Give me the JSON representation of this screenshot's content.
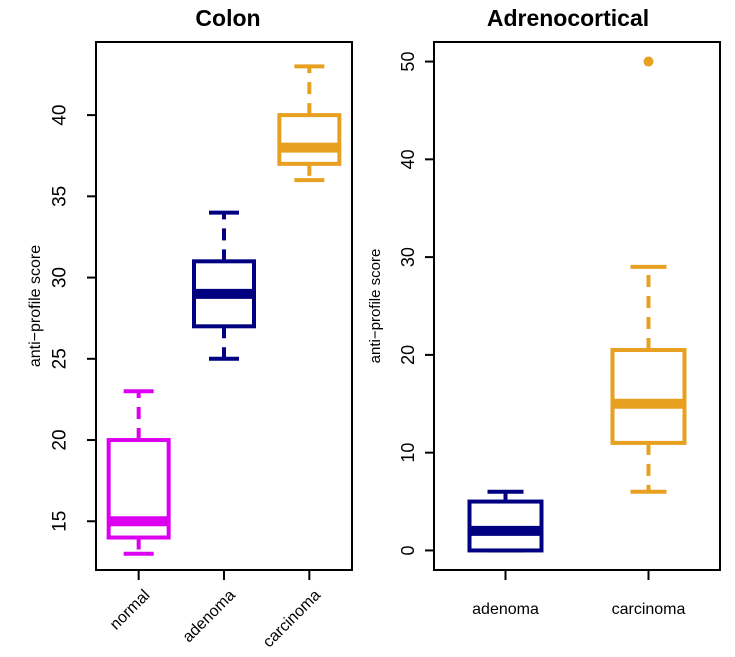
{
  "chart_data": [
    {
      "type": "box",
      "title": "Colon",
      "ylabel": "anti−profile score",
      "ylim": [
        12,
        44.5
      ],
      "yticks": [
        15,
        20,
        25,
        30,
        35,
        40
      ],
      "grid": false,
      "category_label_rotation": -45,
      "categories": [
        "normal",
        "adenoma",
        "carcinoma"
      ],
      "boxes": [
        {
          "category": "normal",
          "color": "#dd00f0",
          "whisker_low": 13,
          "q1": 14,
          "median": 15,
          "q3": 20,
          "whisker_high": 23,
          "outliers": []
        },
        {
          "category": "adenoma",
          "color": "#000080",
          "whisker_low": 25,
          "q1": 27,
          "median": 29,
          "q3": 31,
          "whisker_high": 34,
          "outliers": []
        },
        {
          "category": "carcinoma",
          "color": "#e8a020",
          "whisker_low": 36,
          "q1": 37,
          "median": 38,
          "q3": 40,
          "whisker_high": 43,
          "outliers": []
        }
      ]
    },
    {
      "type": "box",
      "title": "Adrenocortical",
      "ylabel": "anti−profile score",
      "ylim": [
        -2,
        52
      ],
      "yticks": [
        0,
        10,
        20,
        30,
        40,
        50
      ],
      "grid": false,
      "category_label_rotation": 0,
      "categories": [
        "adenoma",
        "carcinoma"
      ],
      "boxes": [
        {
          "category": "adenoma",
          "color": "#000080",
          "whisker_low": 0,
          "q1": 0,
          "median": 2,
          "q3": 5,
          "whisker_high": 6,
          "outliers": []
        },
        {
          "category": "carcinoma",
          "color": "#e8a020",
          "whisker_low": 6,
          "q1": 11,
          "median": 15,
          "q3": 20.5,
          "whisker_high": 29,
          "outliers": [
            50
          ]
        }
      ]
    }
  ]
}
